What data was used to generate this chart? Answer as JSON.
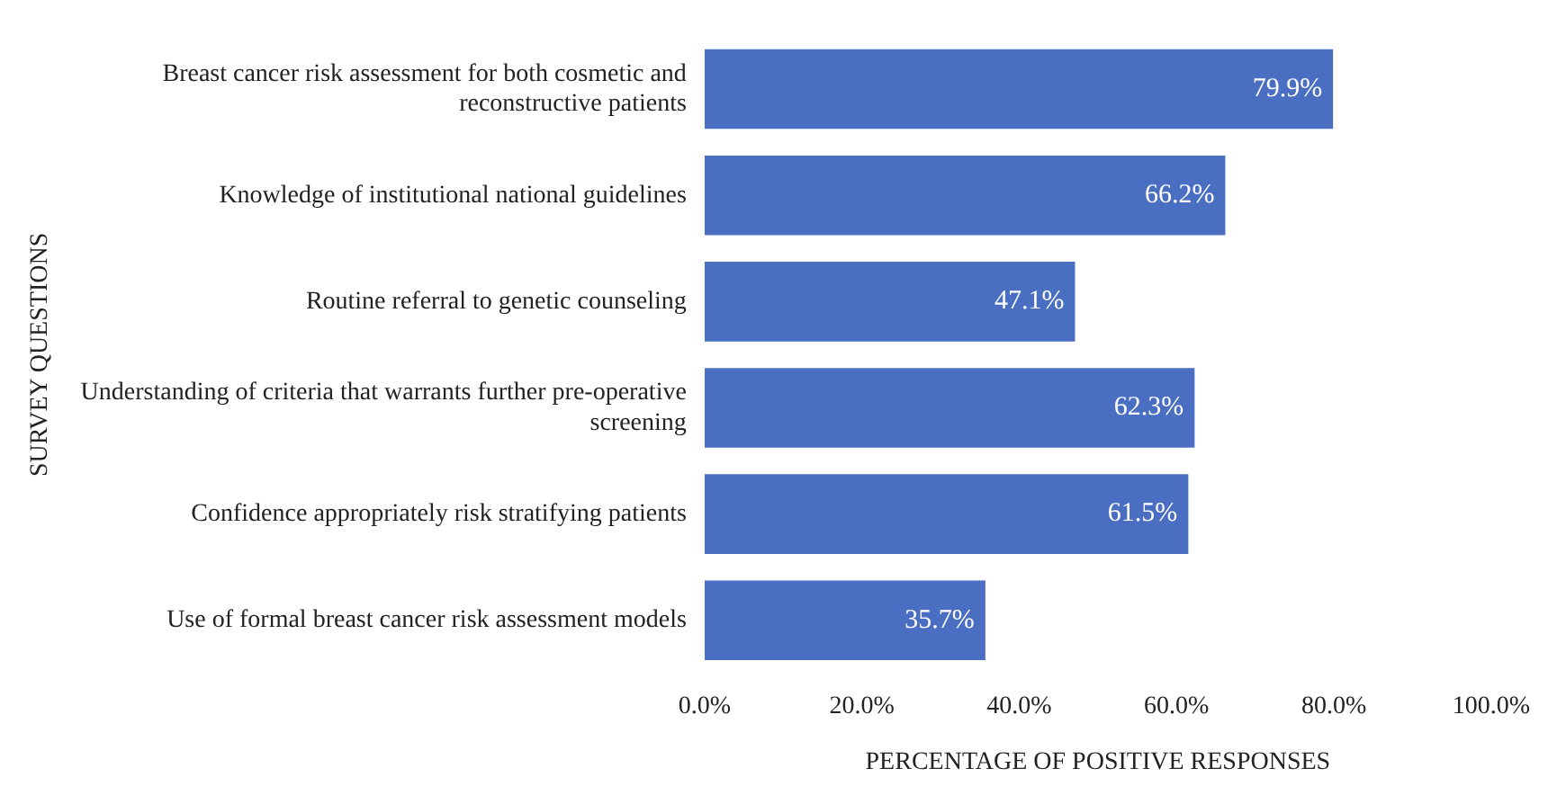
{
  "chart_data": {
    "type": "bar",
    "orientation": "horizontal",
    "categories": [
      "Breast cancer risk assessment for both cosmetic and reconstructive patients",
      "Knowledge of institutional national guidelines",
      "Routine referral to genetic counseling",
      "Understanding of criteria that warrants further pre-operative screening",
      "Confidence appropriately risk stratifying patients",
      "Use of formal breast cancer risk assessment models"
    ],
    "values": [
      79.9,
      66.2,
      47.1,
      62.3,
      61.5,
      35.7
    ],
    "value_labels": [
      "79.9%",
      "66.2%",
      "47.1%",
      "62.3%",
      "61.5%",
      "35.7%"
    ],
    "color": "#4a6fc2",
    "xlim": [
      0,
      100
    ],
    "xticks": [
      {
        "value": 0,
        "label": "0.0%"
      },
      {
        "value": 20,
        "label": "20.0%"
      },
      {
        "value": 40,
        "label": "40.0%"
      },
      {
        "value": 60,
        "label": "60.0%"
      },
      {
        "value": 80,
        "label": "80.0%"
      },
      {
        "value": 100,
        "label": "100.0%"
      }
    ],
    "xlabel": "PERCENTAGE OF POSITIVE RESPONSES",
    "ylabel": "SURVEY QUESTIONS",
    "grid": false,
    "legend": false
  }
}
